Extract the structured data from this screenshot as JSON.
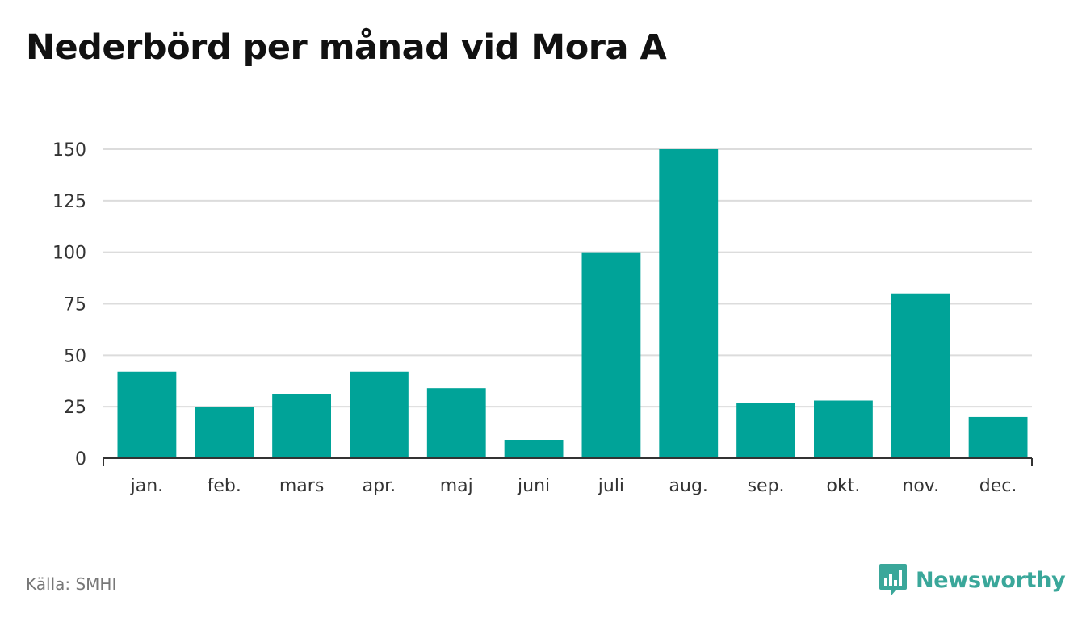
{
  "title": "Nederbörd per månad vid Mora A",
  "source": "Källa: SMHI",
  "brand": "Newsworthy",
  "colors": {
    "bar": "#00a398",
    "grid": "#dcdcdc",
    "axis": "#333333",
    "brand": "#3aa79a"
  },
  "chart_data": {
    "type": "bar",
    "categories": [
      "jan.",
      "feb.",
      "mars",
      "apr.",
      "maj",
      "juni",
      "juli",
      "aug.",
      "sep.",
      "okt.",
      "nov.",
      "dec."
    ],
    "values": [
      42,
      25,
      31,
      42,
      34,
      9,
      100,
      150,
      27,
      28,
      80,
      20
    ],
    "yticks": [
      0,
      25,
      50,
      75,
      100,
      125,
      150
    ],
    "ylim": [
      0,
      150
    ],
    "grid": true,
    "xlabel": "",
    "ylabel": ""
  }
}
